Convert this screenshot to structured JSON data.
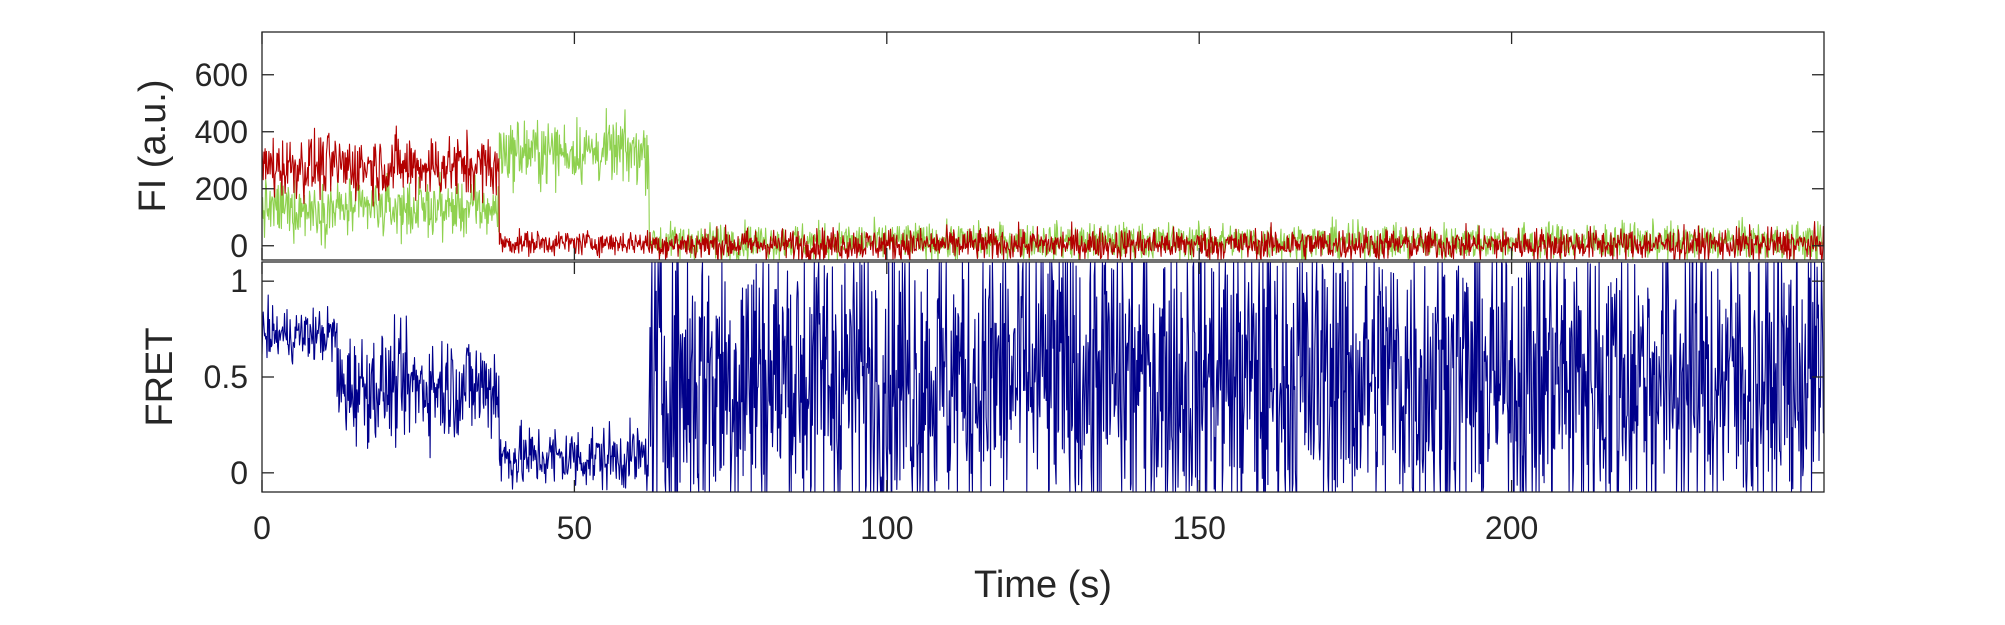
{
  "chart_data": [
    {
      "type": "line",
      "panel": "top",
      "ylabel": "FI (a.u.)",
      "xlabel": "",
      "xlim": [
        0,
        250
      ],
      "ylim": [
        -50,
        750
      ],
      "yticks": [
        0,
        200,
        400,
        600
      ],
      "ytick_labels": [
        "0",
        "200",
        "400",
        "600"
      ],
      "grid": false,
      "series": [
        {
          "color": "#8fd14f",
          "segments": [
            {
              "t0": 0,
              "t1": 38,
              "mean": 130,
              "noise": 70
            },
            {
              "t0": 38,
              "t1": 62,
              "mean": 330,
              "noise": 80
            },
            {
              "t0": 62,
              "t1": 250,
              "mean": 15,
              "noise": 45
            }
          ]
        },
        {
          "color": "#b30000",
          "segments": [
            {
              "t0": 0,
              "t1": 38,
              "mean": 280,
              "noise": 80
            },
            {
              "t0": 38,
              "t1": 62,
              "mean": 10,
              "noise": 30
            },
            {
              "t0": 62,
              "t1": 250,
              "mean": 5,
              "noise": 40
            }
          ]
        }
      ]
    },
    {
      "type": "line",
      "panel": "bottom",
      "ylabel": "FRET",
      "xlabel": "Time (s)",
      "xlim": [
        0,
        250
      ],
      "ylim": [
        -0.1,
        1.1
      ],
      "yticks": [
        0,
        0.5,
        1
      ],
      "ytick_labels": [
        "0",
        "0.5",
        "1"
      ],
      "xticks": [
        0,
        50,
        100,
        150,
        200
      ],
      "xtick_labels": [
        "0",
        "50",
        "100",
        "150",
        "200"
      ],
      "grid": false,
      "series": [
        {
          "color": "#00008b",
          "segments": [
            {
              "t0": 0,
              "t1": 12,
              "mean": 0.72,
              "noise": 0.1
            },
            {
              "t0": 12,
              "t1": 38,
              "mean": 0.45,
              "noise": 0.2
            },
            {
              "t0": 38,
              "t1": 62,
              "mean": 0.08,
              "noise": 0.12
            },
            {
              "t0": 62,
              "t1": 250,
              "mean": 0.5,
              "noise": 0.6
            }
          ]
        }
      ]
    }
  ]
}
